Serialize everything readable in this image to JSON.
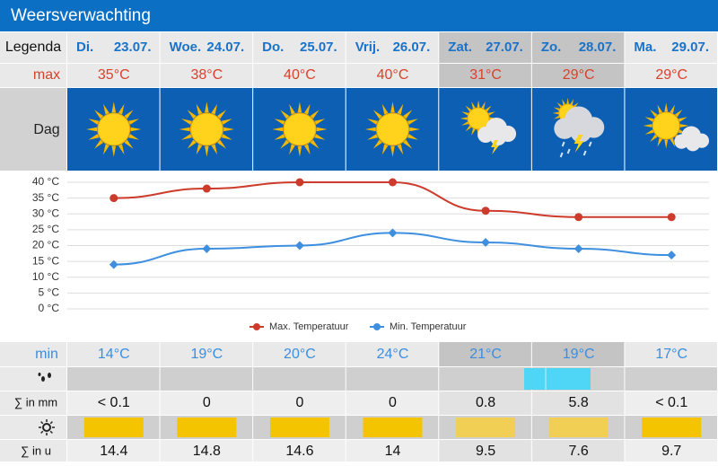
{
  "header": {
    "title": "Weersverwachting"
  },
  "table": {
    "legend_label": "Legenda",
    "days": [
      {
        "name": "Di.",
        "date": "23.07."
      },
      {
        "name": "Woe.",
        "date": "24.07."
      },
      {
        "name": "Do.",
        "date": "25.07."
      },
      {
        "name": "Vrij.",
        "date": "26.07."
      },
      {
        "name": "Zat.",
        "date": "27.07."
      },
      {
        "name": "Zo.",
        "date": "28.07."
      },
      {
        "name": "Ma.",
        "date": "29.07."
      }
    ],
    "max_label": "max",
    "max": [
      "35°C",
      "38°C",
      "40°C",
      "40°C",
      "31°C",
      "29°C",
      "29°C"
    ],
    "icon_label": "Dag",
    "min_label": "min",
    "min": [
      "14°C",
      "19°C",
      "20°C",
      "24°C",
      "21°C",
      "19°C",
      "17°C"
    ],
    "rain_label": "∑ in mm",
    "rain": [
      "< 0.1",
      "0",
      "0",
      "0",
      "0.8",
      "5.8",
      "< 0.1"
    ],
    "sun_label": "∑ in u",
    "sun": [
      14.4,
      14.8,
      14.6,
      14,
      9.5,
      7.6,
      9.7
    ]
  },
  "chart_data": {
    "type": "line",
    "series": [
      {
        "name": "Max. Temperatuur",
        "color": "#cc3b2b",
        "values": [
          35,
          38,
          40,
          40,
          31,
          29,
          29
        ]
      },
      {
        "name": "Min. Temperatuur",
        "color": "#3f8fe0",
        "values": [
          14,
          19,
          20,
          24,
          21,
          19,
          17
        ]
      }
    ],
    "ylim": [
      0,
      40
    ],
    "yticks": [
      {
        "value": 0,
        "label": "0 °C"
      },
      {
        "value": 5,
        "label": "5 °C"
      },
      {
        "value": 10,
        "label": "10 °C"
      },
      {
        "value": 15,
        "label": "15 °C"
      },
      {
        "value": 20,
        "label": "20 °C"
      },
      {
        "value": 25,
        "label": "25 °C"
      },
      {
        "value": 30,
        "label": "30 °C"
      },
      {
        "value": 35,
        "label": "35 °C"
      },
      {
        "value": 40,
        "label": "40 °C"
      }
    ],
    "grid": true
  }
}
